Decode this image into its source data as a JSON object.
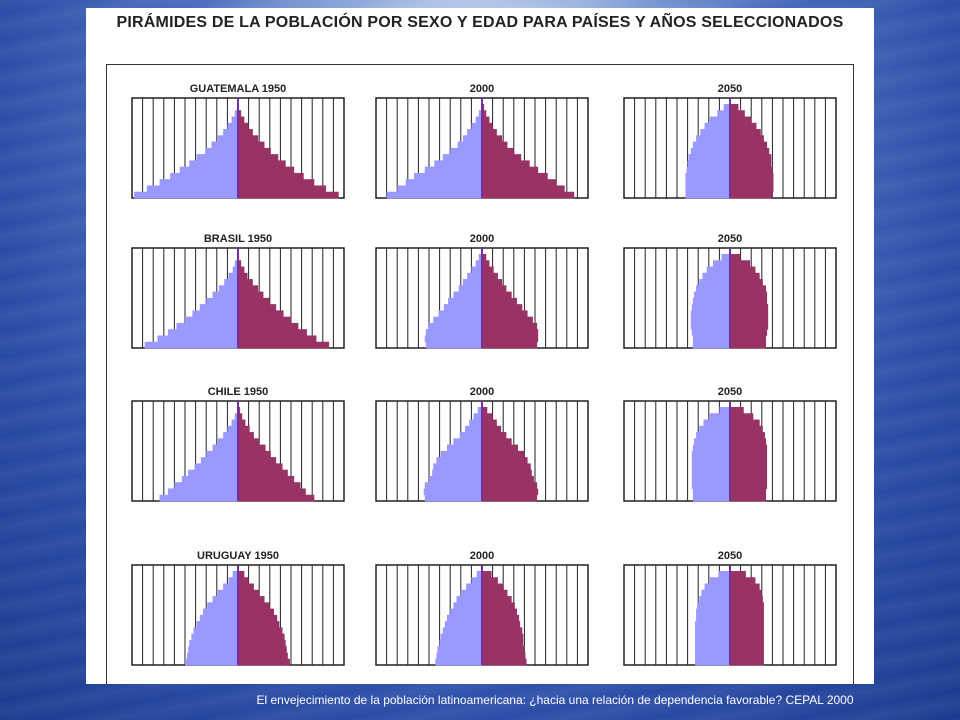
{
  "slide": {
    "title": "PIRÁMIDES DE LA POBLACIÓN POR SEXO Y EDAD PARA PAÍSES Y AÑOS SELECCIONADOS",
    "caption": "El envejecimiento de la población latinoamericana: ¿hacia una relación de dependencia favorable? CEPAL 2000"
  },
  "colors": {
    "male": "#9999ff",
    "female": "#993366",
    "center_line": "#7030a0"
  },
  "chart_data": [
    {
      "type": "bar",
      "title": "GUATEMALA 1950",
      "categories_order": "youngest-to-oldest",
      "male": [
        9.8,
        8.6,
        7.4,
        6.4,
        5.5,
        4.6,
        3.9,
        3.1,
        2.5,
        1.9,
        1.4,
        1.0,
        0.6,
        0.3,
        0.1
      ],
      "female": [
        9.5,
        8.3,
        7.2,
        6.2,
        5.3,
        4.5,
        3.8,
        3.1,
        2.5,
        1.9,
        1.4,
        1.0,
        0.6,
        0.3,
        0.1
      ]
    },
    {
      "type": "bar",
      "title": "2000",
      "categories_order": "youngest-to-oldest",
      "male": [
        9.0,
        8.0,
        7.2,
        6.4,
        5.4,
        4.5,
        3.7,
        3.0,
        2.3,
        1.8,
        1.4,
        1.0,
        0.6,
        0.3,
        0.1
      ],
      "female": [
        8.7,
        7.8,
        7.0,
        6.2,
        5.3,
        4.5,
        3.7,
        3.0,
        2.4,
        1.9,
        1.4,
        1.0,
        0.7,
        0.4,
        0.2
      ]
    },
    {
      "type": "bar",
      "title": "2050",
      "categories_order": "youngest-to-oldest",
      "male": [
        4.2,
        4.2,
        4.2,
        4.2,
        4.1,
        4.0,
        3.9,
        3.7,
        3.5,
        3.2,
        2.8,
        2.4,
        1.9,
        1.2,
        0.6
      ],
      "female": [
        4.0,
        4.1,
        4.1,
        4.1,
        4.0,
        3.9,
        3.9,
        3.7,
        3.5,
        3.2,
        2.9,
        2.5,
        2.0,
        1.4,
        0.8
      ]
    },
    {
      "type": "bar",
      "title": "BRASIL 1950",
      "categories_order": "youngest-to-oldest",
      "male": [
        8.8,
        7.6,
        6.6,
        5.8,
        5.0,
        4.3,
        3.6,
        3.0,
        2.4,
        1.8,
        1.3,
        0.9,
        0.5,
        0.3,
        0.1
      ],
      "female": [
        8.6,
        7.4,
        6.5,
        5.7,
        5.0,
        4.3,
        3.6,
        3.0,
        2.4,
        1.9,
        1.4,
        0.9,
        0.6,
        0.3,
        0.1
      ]
    },
    {
      "type": "bar",
      "title": "2000",
      "categories_order": "youngest-to-oldest",
      "male": [
        5.3,
        5.4,
        5.3,
        5.1,
        4.6,
        4.1,
        3.6,
        3.2,
        2.7,
        2.2,
        1.8,
        1.4,
        1.0,
        0.6,
        0.3
      ],
      "female": [
        5.2,
        5.3,
        5.3,
        5.2,
        4.8,
        4.3,
        3.8,
        3.3,
        2.8,
        2.3,
        1.9,
        1.5,
        1.1,
        0.7,
        0.4
      ]
    },
    {
      "type": "bar",
      "title": "2050",
      "categories_order": "youngest-to-oldest",
      "male": [
        3.5,
        3.5,
        3.6,
        3.7,
        3.7,
        3.7,
        3.6,
        3.5,
        3.4,
        3.2,
        2.9,
        2.6,
        2.2,
        1.6,
        0.8
      ],
      "female": [
        3.4,
        3.4,
        3.5,
        3.6,
        3.6,
        3.6,
        3.6,
        3.5,
        3.5,
        3.4,
        3.1,
        2.8,
        2.4,
        1.9,
        1.0
      ]
    },
    {
      "type": "bar",
      "title": "CHILE 1950",
      "categories_order": "youngest-to-oldest",
      "male": [
        7.4,
        6.6,
        6.0,
        5.3,
        4.7,
        4.1,
        3.5,
        3.0,
        2.4,
        1.9,
        1.4,
        1.0,
        0.6,
        0.3,
        0.1
      ],
      "female": [
        7.2,
        6.4,
        5.9,
        5.3,
        4.7,
        4.2,
        3.6,
        3.1,
        2.6,
        2.0,
        1.5,
        1.1,
        0.7,
        0.4,
        0.2
      ]
    },
    {
      "type": "bar",
      "title": "2000",
      "categories_order": "youngest-to-oldest",
      "male": [
        5.4,
        5.5,
        5.4,
        5.0,
        4.7,
        4.6,
        4.3,
        3.9,
        3.3,
        2.7,
        2.1,
        1.6,
        1.2,
        0.8,
        0.4
      ],
      "female": [
        5.2,
        5.3,
        5.2,
        4.9,
        4.7,
        4.6,
        4.3,
        4.0,
        3.4,
        2.8,
        2.3,
        1.8,
        1.4,
        1.0,
        0.5
      ]
    },
    {
      "type": "bar",
      "title": "2050",
      "categories_order": "youngest-to-oldest",
      "male": [
        3.5,
        3.5,
        3.6,
        3.6,
        3.6,
        3.6,
        3.6,
        3.6,
        3.5,
        3.4,
        3.2,
        2.9,
        2.5,
        1.9,
        1.0
      ],
      "female": [
        3.4,
        3.4,
        3.5,
        3.5,
        3.5,
        3.5,
        3.5,
        3.5,
        3.5,
        3.4,
        3.3,
        3.1,
        2.8,
        2.2,
        1.3
      ]
    },
    {
      "type": "bar",
      "title": "URUGUAY 1950",
      "categories_order": "youngest-to-oldest",
      "male": [
        5.0,
        4.8,
        4.7,
        4.6,
        4.4,
        4.2,
        3.9,
        3.6,
        3.3,
        2.9,
        2.4,
        1.9,
        1.4,
        0.9,
        0.5
      ],
      "female": [
        4.9,
        4.7,
        4.6,
        4.5,
        4.4,
        4.2,
        3.9,
        3.7,
        3.4,
        3.0,
        2.5,
        2.0,
        1.5,
        1.0,
        0.6
      ]
    },
    {
      "type": "bar",
      "title": "2000",
      "categories_order": "youngest-to-oldest",
      "male": [
        4.4,
        4.3,
        4.2,
        4.0,
        3.9,
        3.7,
        3.5,
        3.3,
        3.0,
        2.7,
        2.4,
        2.0,
        1.5,
        1.0,
        0.5
      ],
      "female": [
        4.2,
        4.1,
        4.0,
        3.9,
        3.9,
        3.8,
        3.6,
        3.5,
        3.3,
        3.1,
        2.8,
        2.4,
        2.0,
        1.5,
        0.9
      ]
    },
    {
      "type": "bar",
      "title": "2050",
      "categories_order": "youngest-to-oldest",
      "male": [
        3.3,
        3.3,
        3.3,
        3.3,
        3.3,
        3.3,
        3.3,
        3.2,
        3.2,
        3.1,
        2.9,
        2.7,
        2.4,
        1.9,
        1.1
      ],
      "female": [
        3.2,
        3.2,
        3.2,
        3.2,
        3.2,
        3.2,
        3.2,
        3.2,
        3.2,
        3.2,
        3.1,
        3.0,
        2.8,
        2.4,
        1.5
      ]
    }
  ]
}
